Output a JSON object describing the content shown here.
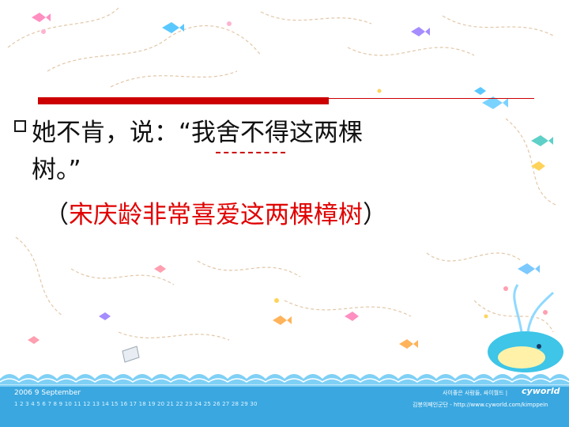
{
  "slide": {
    "line1": "她不肯，说：“我舍不得这两棵",
    "line2": "树。”",
    "line3_open": "（",
    "line3_answer": "宋庆龄非常喜爱这两棵樟树",
    "line3_close": "）"
  },
  "footer": {
    "calendar_year": "2006  9  September",
    "calendar_days": "1 2 3 4 5 6 7 8 9 10 11 12 13 14 15 16 17 18 19 20 21 22 23 24 25 26 27 28 29 30",
    "brand_tagline": "사이좋은 사람들, 싸이월드  |",
    "brand_logo": "cyworld",
    "brand_url": "김붕의페인군단 - http://www.cyworld.com/kimppein"
  },
  "colors": {
    "accent_red": "#cc0000",
    "answer_red": "#e00000",
    "text": "#111111",
    "sea": "#3aa7e0"
  }
}
